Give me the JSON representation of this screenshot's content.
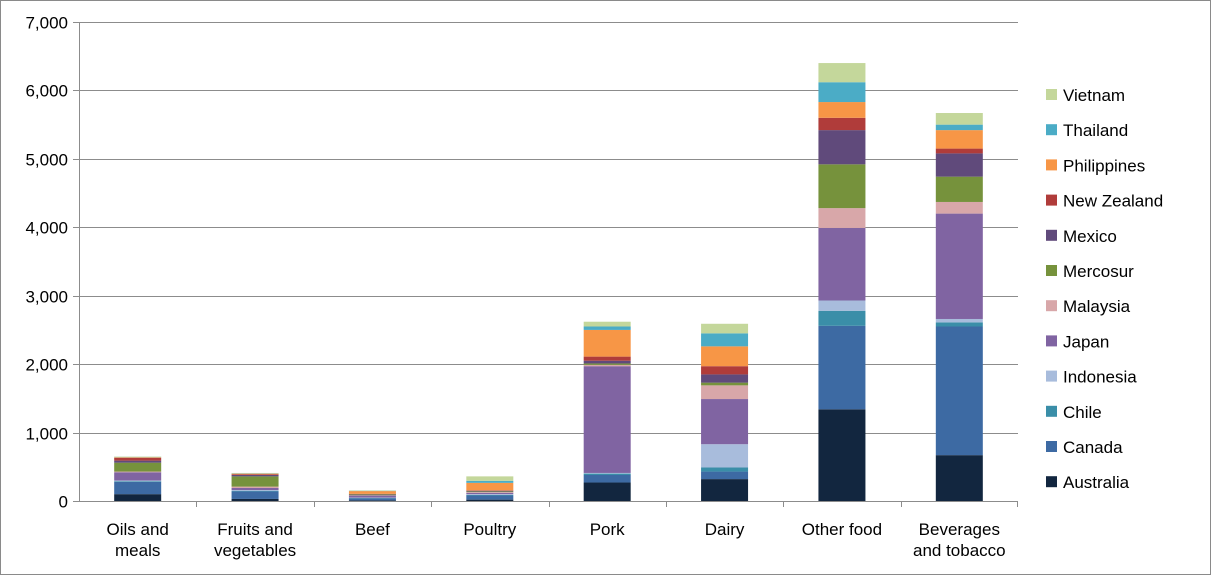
{
  "chart_data": {
    "type": "bar",
    "stacked": true,
    "title": "",
    "xlabel": "",
    "ylabel": "",
    "ylim": [
      0,
      7000
    ],
    "y_ticks": [
      0,
      1000,
      2000,
      3000,
      4000,
      5000,
      6000,
      7000
    ],
    "y_tick_labels": [
      "0",
      "1,000",
      "2,000",
      "3,000",
      "4,000",
      "5,000",
      "6,000",
      "7,000"
    ],
    "grid": "horizontal",
    "legend_position": "right",
    "categories": [
      [
        "Oils and",
        "meals"
      ],
      [
        "Fruits and",
        "vegetables"
      ],
      [
        "Beef"
      ],
      [
        "Poultry"
      ],
      [
        "Pork"
      ],
      [
        "Dairy"
      ],
      [
        "Other food"
      ],
      [
        "Beverages",
        "and tobacco"
      ]
    ],
    "series": [
      {
        "name": "Australia",
        "color": "#12263f",
        "values": [
          100,
          30,
          10,
          20,
          270,
          320,
          1340,
          670
        ]
      },
      {
        "name": "Canada",
        "color": "#3d6aa3",
        "values": [
          180,
          110,
          30,
          60,
          110,
          110,
          1220,
          1880
        ]
      },
      {
        "name": "Chile",
        "color": "#3a8ea8",
        "values": [
          10,
          10,
          5,
          10,
          20,
          60,
          220,
          60
        ]
      },
      {
        "name": "Indonesia",
        "color": "#a8bcdc",
        "values": [
          10,
          10,
          5,
          10,
          10,
          340,
          150,
          50
        ]
      },
      {
        "name": "Japan",
        "color": "#8064a2",
        "values": [
          120,
          30,
          30,
          20,
          1560,
          660,
          1060,
          1540
        ]
      },
      {
        "name": "Malaysia",
        "color": "#d8a7a9",
        "values": [
          10,
          20,
          5,
          10,
          20,
          200,
          290,
          170
        ]
      },
      {
        "name": "Mercosur",
        "color": "#76923c",
        "values": [
          130,
          150,
          10,
          10,
          20,
          40,
          640,
          370
        ]
      },
      {
        "name": "Mexico",
        "color": "#604a7b",
        "values": [
          30,
          20,
          5,
          10,
          40,
          120,
          500,
          340
        ]
      },
      {
        "name": "New Zealand",
        "color": "#b03c3a",
        "values": [
          40,
          10,
          5,
          5,
          60,
          120,
          180,
          70
        ]
      },
      {
        "name": "Philippines",
        "color": "#f79646",
        "values": [
          10,
          10,
          40,
          110,
          390,
          290,
          230,
          270
        ]
      },
      {
        "name": "Thailand",
        "color": "#4bacc6",
        "values": [
          5,
          5,
          5,
          30,
          50,
          190,
          290,
          80
        ]
      },
      {
        "name": "Vietnam",
        "color": "#c4d79b",
        "values": [
          5,
          5,
          5,
          65,
          70,
          140,
          280,
          170
        ]
      }
    ]
  }
}
